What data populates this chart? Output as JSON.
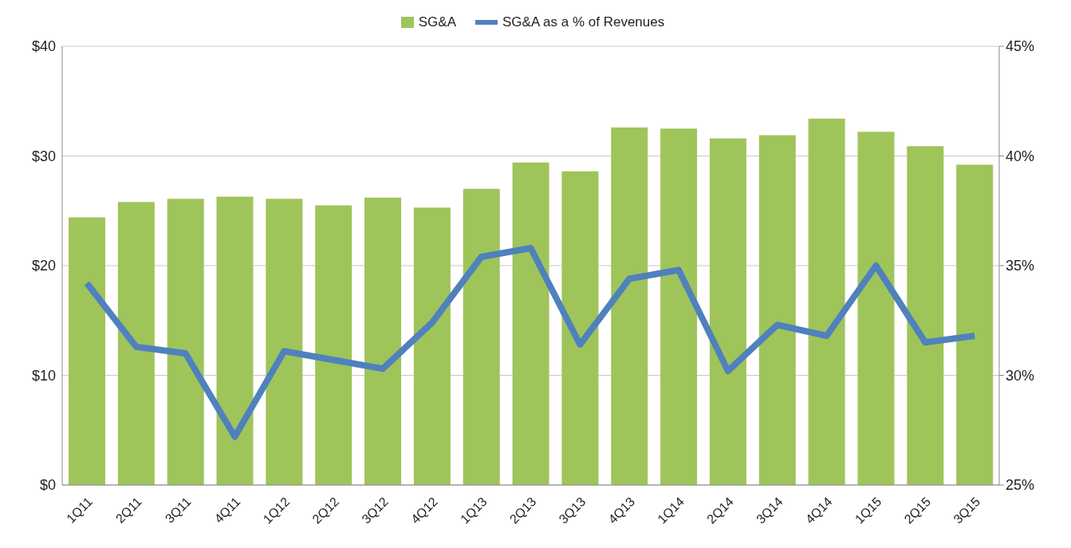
{
  "chart_data": {
    "type": "bar",
    "categories": [
      "1Q11",
      "2Q11",
      "3Q11",
      "4Q11",
      "1Q12",
      "2Q12",
      "3Q12",
      "4Q12",
      "1Q13",
      "2Q13",
      "3Q13",
      "4Q13",
      "1Q14",
      "2Q14",
      "3Q14",
      "4Q14",
      "1Q15",
      "2Q15",
      "3Q15"
    ],
    "series": [
      {
        "name": "SG&A",
        "color": "#9fc45a",
        "values": [
          24.4,
          25.8,
          26.1,
          26.3,
          26.1,
          25.5,
          26.2,
          25.3,
          27.0,
          29.4,
          28.6,
          32.6,
          32.5,
          31.6,
          31.9,
          33.4,
          32.2,
          30.9,
          29.2
        ]
      },
      {
        "name": "SG&A as a % of Revenues",
        "type": "line",
        "axis": "y2",
        "color": "#4f81bd",
        "values": [
          34.2,
          31.3,
          31.0,
          27.2,
          31.1,
          30.7,
          30.3,
          32.4,
          35.4,
          35.8,
          31.4,
          34.4,
          34.8,
          30.2,
          32.3,
          31.8,
          35.0,
          31.5,
          31.8
        ]
      }
    ],
    "ylim": [
      0,
      40
    ],
    "yticks": [
      {
        "value": 0,
        "label": "$0"
      },
      {
        "value": 10,
        "label": "$10"
      },
      {
        "value": 20,
        "label": "$20"
      },
      {
        "value": 30,
        "label": "$30"
      },
      {
        "value": 40,
        "label": "$40"
      }
    ],
    "y2lim": [
      25,
      45
    ],
    "y2ticks": [
      {
        "value": 25,
        "label": "25%"
      },
      {
        "value": 30,
        "label": "30%"
      },
      {
        "value": 35,
        "label": "35%"
      },
      {
        "value": 40,
        "label": "40%"
      },
      {
        "value": 45,
        "label": "45%"
      }
    ],
    "grid": "y",
    "legend": "top",
    "marker": "none",
    "line_style": "solid"
  }
}
